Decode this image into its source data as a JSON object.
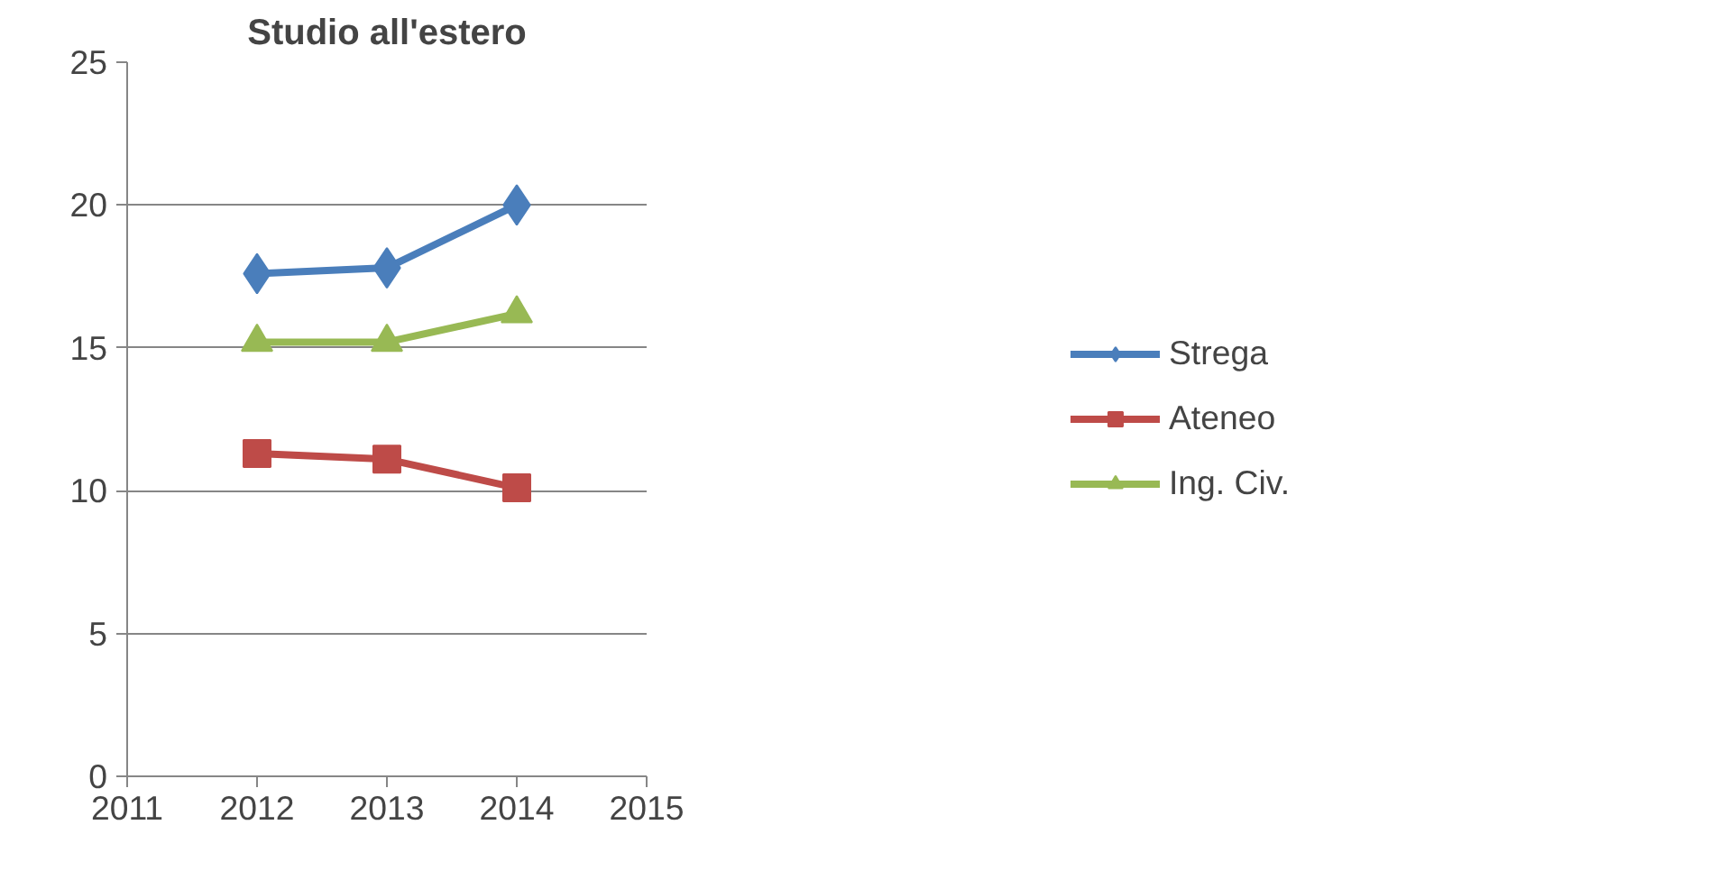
{
  "chart_data": {
    "type": "line",
    "title": "Studio all'estero",
    "x": [
      2012,
      2013,
      2014
    ],
    "xlim": [
      2011,
      2015
    ],
    "xticks": [
      2011,
      2012,
      2013,
      2014,
      2015
    ],
    "ylim": [
      0,
      25
    ],
    "yticks": [
      0,
      5,
      10,
      15,
      20,
      25
    ],
    "grid": "y",
    "legend": "right",
    "series": [
      {
        "name": "Strega",
        "color": "#4a7ebb",
        "marker": "diamond",
        "values": [
          17.6,
          17.8,
          20.0
        ]
      },
      {
        "name": "Ateneo",
        "color": "#be4b48",
        "marker": "square",
        "values": [
          11.3,
          11.1,
          10.1
        ]
      },
      {
        "name": "Ing. Civ.",
        "color": "#98b954",
        "marker": "triangle",
        "values": [
          15.2,
          15.2,
          16.2
        ]
      }
    ]
  }
}
